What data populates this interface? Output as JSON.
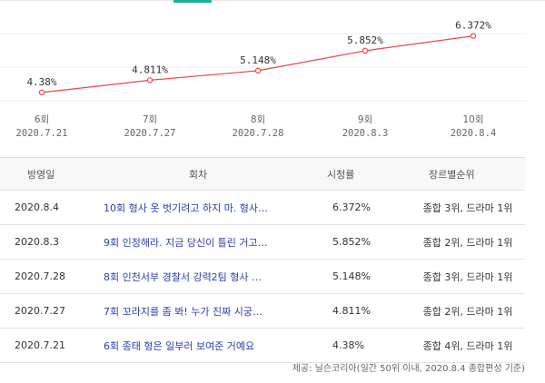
{
  "chart_data": {
    "type": "line",
    "series": [
      {
        "values": [
          4.38,
          4.811,
          5.148,
          5.852,
          6.372
        ]
      }
    ],
    "point_labels": [
      "4.38%",
      "4.811%",
      "5.148%",
      "5.852%",
      "6.372%"
    ],
    "x_episodes": [
      "6회",
      "7회",
      "8회",
      "9회",
      "10회"
    ],
    "x_dates": [
      "2020.7.21",
      "2020.7.27",
      "2020.7.28",
      "2020.8.3",
      "2020.8.4"
    ],
    "ylim": [
      3.0,
      7.0
    ],
    "line_color": "#e84848",
    "gridlines": true
  },
  "table": {
    "headers": {
      "date": "방영일",
      "title": "회차",
      "rating": "시청률",
      "rank": "장르별순위"
    },
    "rows": [
      {
        "date": "2020.8.4",
        "title": "10회 형사 옷 벗기려고 하지 마. 형사…",
        "rating": "6.372%",
        "rank": "종합 3위, 드라마 1위"
      },
      {
        "date": "2020.8.3",
        "title": "9회 인정해라. 지금 당신이 틀린 거고…",
        "rating": "5.852%",
        "rank": "종합 2위, 드라마 1위"
      },
      {
        "date": "2020.7.28",
        "title": "8회 인천서부 경찰서 강력2팀 형사 …",
        "rating": "5.148%",
        "rank": "종합 3위, 드라마 1위"
      },
      {
        "date": "2020.7.27",
        "title": "7회 꼬라지를 좀 봐! 누가 진짜 시궁…",
        "rating": "4.811%",
        "rank": "종합 2위, 드라마 1위"
      },
      {
        "date": "2020.7.21",
        "title": "6회 종태 형은 일부러 보여준 거예요",
        "rating": "4.38%",
        "rank": "종합 4위, 드라마 1위"
      }
    ]
  },
  "source": "제공: 닐슨코리아(일간 50위 이내, 2020.8.4 종합편성 기준)"
}
